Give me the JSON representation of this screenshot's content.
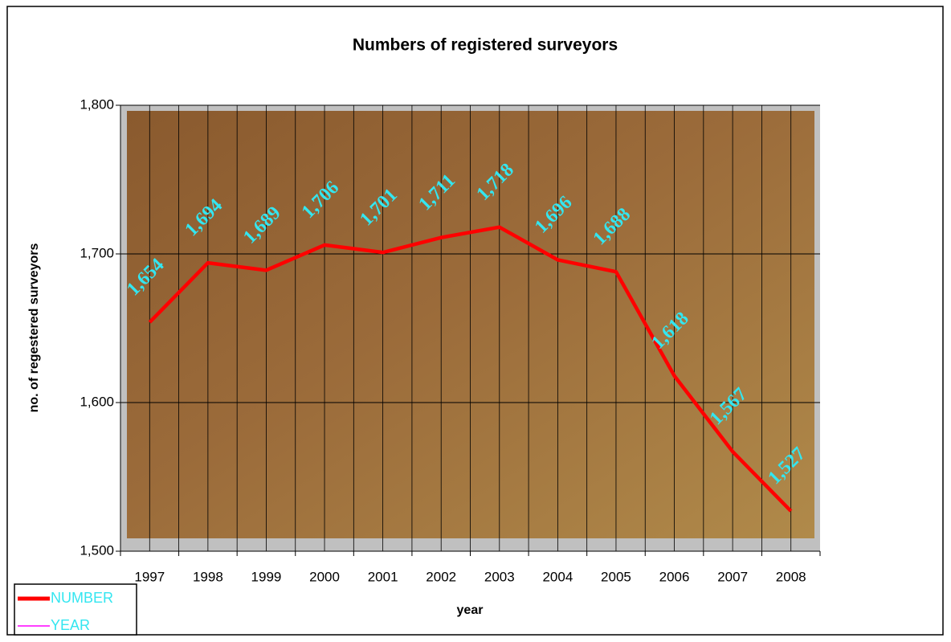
{
  "chart_data": {
    "type": "line",
    "title": "Numbers of registered surveyors",
    "x_label": "year",
    "y_label": "no. of regestered surveyors",
    "categories": [
      "1997",
      "1998",
      "1999",
      "2000",
      "2001",
      "2002",
      "2003",
      "2004",
      "2005",
      "2006",
      "2007",
      "2008"
    ],
    "series": [
      {
        "name": "NUMBER",
        "color": "#ff0000",
        "values": [
          1654,
          1694,
          1689,
          1706,
          1701,
          1711,
          1718,
          1696,
          1688,
          1618,
          1567,
          1527
        ],
        "value_labels": [
          "1,654",
          "1,694",
          "1,689",
          "1,706",
          "1,701",
          "1,711",
          "1,718",
          "1,696",
          "1,688",
          "1,618",
          "1,567",
          "1,527"
        ],
        "label_color": "#33e6f0"
      },
      {
        "name": "YEAR",
        "color": "#ff00ff",
        "values": [
          null,
          null,
          null,
          null,
          null,
          null,
          null,
          null,
          null,
          null,
          null,
          null
        ]
      }
    ],
    "ylim": [
      1500,
      1800
    ],
    "yticks": [
      {
        "value": 1500,
        "label": "1,500"
      },
      {
        "value": 1600,
        "label": "1,600"
      },
      {
        "value": 1700,
        "label": "1,700"
      },
      {
        "value": 1800,
        "label": "1,800"
      }
    ],
    "grid": true,
    "legend": "bottom-left",
    "legend_text_color": "#33e6f0"
  }
}
